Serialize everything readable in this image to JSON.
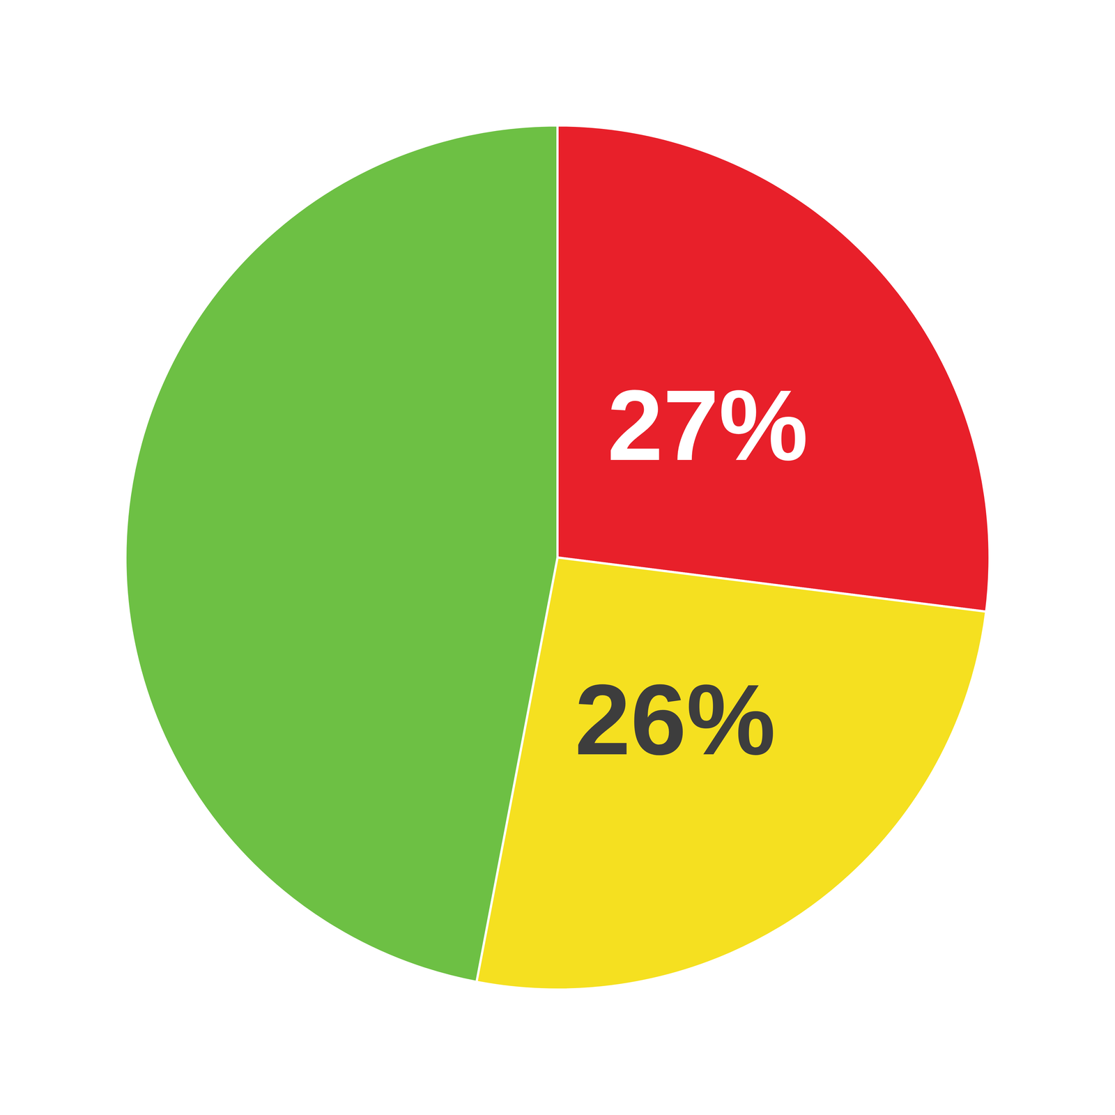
{
  "chart_data": {
    "type": "pie",
    "values": [
      27,
      26,
      47
    ],
    "colors": [
      "#E8202A",
      "#F5E020",
      "#6DC044"
    ],
    "data_labels": true,
    "value_labels": [
      "27%",
      "26%",
      null
    ]
  }
}
